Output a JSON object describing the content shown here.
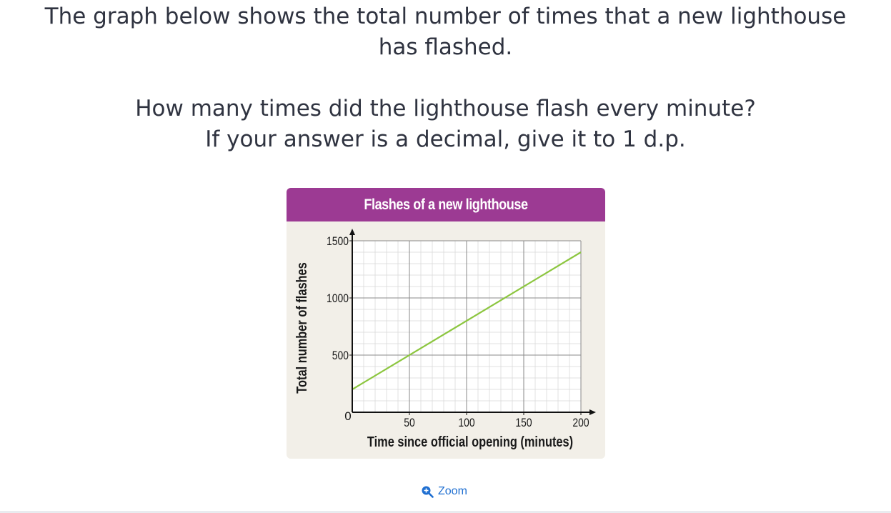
{
  "question": {
    "line1": "The graph below shows the total number of times that a new lighthouse",
    "line2": "has flashed.",
    "line3": "How many times did the lighthouse flash every minute?",
    "line4": "If your answer is a decimal, give it to 1 d.p."
  },
  "zoom": {
    "label": "Zoom",
    "icon": "zoom-in-icon"
  },
  "colors": {
    "header": "#9c3a93",
    "line": "#8cc63f",
    "link": "#1f6fd1",
    "card_bg": "#f2efe8"
  },
  "chart_data": {
    "type": "line",
    "title": "Flashes of a new lighthouse",
    "xlabel": "Time since official opening (minutes)",
    "ylabel": "Total number of flashes",
    "xlim": [
      0,
      200
    ],
    "ylim": [
      0,
      1500
    ],
    "x_ticks": [
      50,
      100,
      150,
      200
    ],
    "y_ticks": [
      500,
      1000,
      1500
    ],
    "origin_label": "0",
    "grid": true,
    "series": [
      {
        "x": [
          0,
          200
        ],
        "y": [
          200,
          1400
        ]
      }
    ]
  }
}
